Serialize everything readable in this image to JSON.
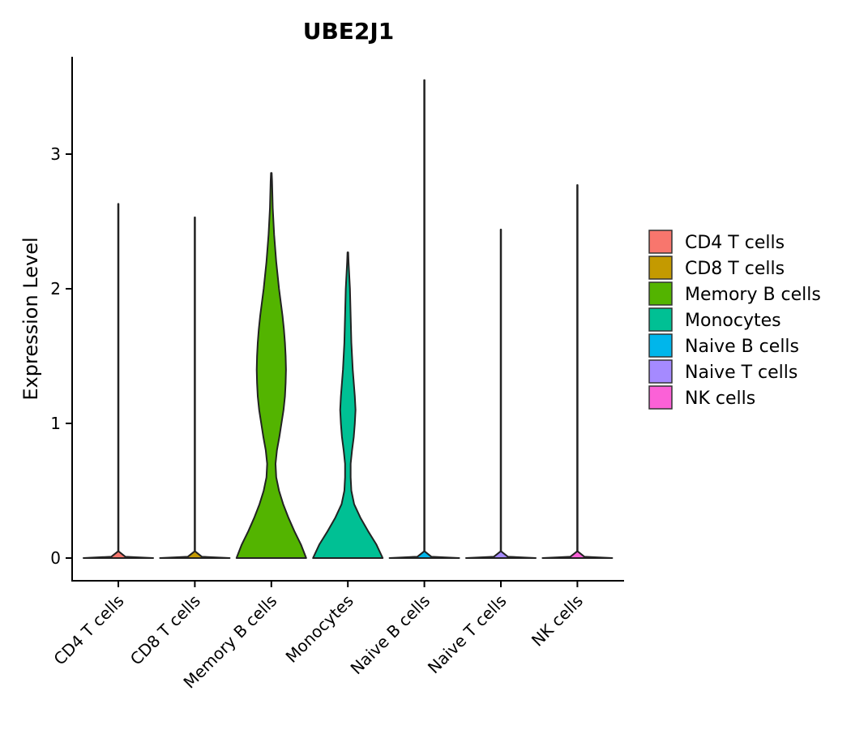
{
  "chart_data": {
    "type": "violin",
    "title": "UBE2J1",
    "xlabel": "",
    "ylabel": "Expression Level",
    "ylim": [
      -0.17,
      3.7
    ],
    "yticks": [
      0,
      1,
      2,
      3
    ],
    "categories": [
      "CD4 T cells",
      "CD8 T cells",
      "Memory B cells",
      "Monocytes",
      "Naive B cells",
      "Naive T cells",
      "NK cells"
    ],
    "colors": [
      "#F8766D",
      "#C49A00",
      "#53B400",
      "#00C094",
      "#00B6EB",
      "#A58AFF",
      "#FB61D7"
    ],
    "max_values": [
      2.63,
      2.53,
      2.86,
      2.27,
      3.55,
      2.44,
      2.77
    ],
    "violins": [
      {
        "y": [
          0,
          0.01,
          0.05,
          2.63
        ],
        "w": [
          1.0,
          0.2,
          0.006,
          0.006
        ]
      },
      {
        "y": [
          0,
          0.01,
          0.05,
          2.53
        ],
        "w": [
          1.0,
          0.2,
          0.006,
          0.006
        ]
      },
      {
        "y": [
          0,
          0.1,
          0.2,
          0.3,
          0.4,
          0.5,
          0.6,
          0.7,
          0.8,
          0.9,
          1.0,
          1.1,
          1.2,
          1.3,
          1.4,
          1.5,
          1.6,
          1.7,
          1.8,
          1.9,
          2.0,
          2.1,
          2.2,
          2.3,
          2.4,
          2.5,
          2.6,
          2.7,
          2.8,
          2.86
        ],
        "w": [
          1.0,
          0.85,
          0.66,
          0.49,
          0.34,
          0.22,
          0.14,
          0.12,
          0.16,
          0.23,
          0.29,
          0.35,
          0.39,
          0.41,
          0.42,
          0.41,
          0.39,
          0.36,
          0.32,
          0.27,
          0.22,
          0.18,
          0.14,
          0.11,
          0.08,
          0.06,
          0.04,
          0.03,
          0.02,
          0.01
        ]
      },
      {
        "y": [
          0,
          0.1,
          0.2,
          0.3,
          0.4,
          0.5,
          0.6,
          0.7,
          0.8,
          0.9,
          1.0,
          1.1,
          1.2,
          1.3,
          1.4,
          1.5,
          1.6,
          1.7,
          1.8,
          1.9,
          2.0,
          2.1,
          2.2,
          2.27
        ],
        "w": [
          1.0,
          0.82,
          0.58,
          0.36,
          0.18,
          0.1,
          0.08,
          0.08,
          0.12,
          0.17,
          0.2,
          0.22,
          0.2,
          0.17,
          0.14,
          0.12,
          0.1,
          0.09,
          0.08,
          0.07,
          0.06,
          0.04,
          0.02,
          0.01
        ]
      },
      {
        "y": [
          0,
          0.01,
          0.05,
          3.55
        ],
        "w": [
          1.0,
          0.2,
          0.006,
          0.006
        ]
      },
      {
        "y": [
          0,
          0.01,
          0.05,
          2.44
        ],
        "w": [
          1.0,
          0.2,
          0.006,
          0.006
        ]
      },
      {
        "y": [
          0,
          0.01,
          0.05,
          2.77
        ],
        "w": [
          1.0,
          0.2,
          0.006,
          0.006
        ]
      }
    ],
    "legend_position": "right",
    "grid": false
  }
}
